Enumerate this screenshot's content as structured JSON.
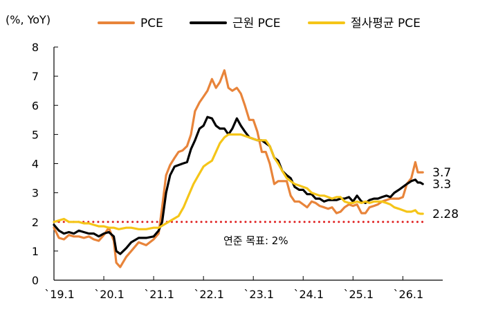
{
  "chart_data": {
    "type": "line",
    "unit_label": "(%, YoY)",
    "ylim": [
      0,
      8
    ],
    "yticks": [
      "0",
      "1",
      "2",
      "3",
      "4",
      "5",
      "6",
      "7",
      "8"
    ],
    "xticks": [
      {
        "label": "`19.1",
        "x": 2019.0
      },
      {
        "label": "`20.1",
        "x": 2020.0
      },
      {
        "label": "`21.1",
        "x": 2021.0
      },
      {
        "label": "`22.1",
        "x": 2022.0
      },
      {
        "label": "`23.1",
        "x": 2023.0
      },
      {
        "label": "`24.1",
        "x": 2024.0
      },
      {
        "label": "`25.1",
        "x": 2025.0
      },
      {
        "label": "`26.1",
        "x": 2026.0
      }
    ],
    "xlim": [
      2019.0,
      2026.8
    ],
    "legend_position": "top",
    "target": {
      "value": 2.0,
      "label": "연준 목표: 2%",
      "color": "#e02020"
    },
    "series": [
      {
        "name": "PCE",
        "color": "#e8843a",
        "end_label": "3.7",
        "points": [
          [
            2019.0,
            1.8
          ],
          [
            2019.1,
            1.45
          ],
          [
            2019.2,
            1.4
          ],
          [
            2019.3,
            1.55
          ],
          [
            2019.4,
            1.5
          ],
          [
            2019.5,
            1.5
          ],
          [
            2019.6,
            1.45
          ],
          [
            2019.7,
            1.5
          ],
          [
            2019.8,
            1.4
          ],
          [
            2019.9,
            1.35
          ],
          [
            2020.0,
            1.55
          ],
          [
            2020.1,
            1.8
          ],
          [
            2020.2,
            1.35
          ],
          [
            2020.25,
            0.6
          ],
          [
            2020.33,
            0.45
          ],
          [
            2020.45,
            0.8
          ],
          [
            2020.55,
            1.0
          ],
          [
            2020.7,
            1.3
          ],
          [
            2020.85,
            1.2
          ],
          [
            2021.0,
            1.4
          ],
          [
            2021.1,
            1.6
          ],
          [
            2021.17,
            2.5
          ],
          [
            2021.25,
            3.6
          ],
          [
            2021.33,
            3.95
          ],
          [
            2021.42,
            4.2
          ],
          [
            2021.5,
            4.4
          ],
          [
            2021.58,
            4.45
          ],
          [
            2021.67,
            4.6
          ],
          [
            2021.75,
            5.0
          ],
          [
            2021.83,
            5.8
          ],
          [
            2021.92,
            6.1
          ],
          [
            2022.0,
            6.3
          ],
          [
            2022.08,
            6.5
          ],
          [
            2022.17,
            6.9
          ],
          [
            2022.25,
            6.6
          ],
          [
            2022.33,
            6.8
          ],
          [
            2022.42,
            7.2
          ],
          [
            2022.5,
            6.6
          ],
          [
            2022.58,
            6.5
          ],
          [
            2022.67,
            6.6
          ],
          [
            2022.75,
            6.4
          ],
          [
            2022.83,
            6.0
          ],
          [
            2022.92,
            5.5
          ],
          [
            2023.0,
            5.5
          ],
          [
            2023.08,
            5.1
          ],
          [
            2023.17,
            4.4
          ],
          [
            2023.25,
            4.4
          ],
          [
            2023.33,
            4.0
          ],
          [
            2023.42,
            3.3
          ],
          [
            2023.5,
            3.4
          ],
          [
            2023.58,
            3.4
          ],
          [
            2023.67,
            3.4
          ],
          [
            2023.75,
            2.9
          ],
          [
            2023.83,
            2.7
          ],
          [
            2023.92,
            2.7
          ],
          [
            2024.0,
            2.6
          ],
          [
            2024.08,
            2.5
          ],
          [
            2024.17,
            2.7
          ],
          [
            2024.25,
            2.65
          ],
          [
            2024.33,
            2.55
          ],
          [
            2024.42,
            2.5
          ],
          [
            2024.5,
            2.45
          ],
          [
            2024.58,
            2.5
          ],
          [
            2024.67,
            2.3
          ],
          [
            2024.75,
            2.35
          ],
          [
            2024.83,
            2.5
          ],
          [
            2024.92,
            2.6
          ],
          [
            2025.0,
            2.55
          ],
          [
            2025.08,
            2.6
          ],
          [
            2025.17,
            2.3
          ],
          [
            2025.25,
            2.3
          ],
          [
            2025.33,
            2.5
          ],
          [
            2025.42,
            2.55
          ],
          [
            2025.5,
            2.6
          ],
          [
            2025.58,
            2.7
          ],
          [
            2025.67,
            2.75
          ],
          [
            2025.75,
            2.8
          ],
          [
            2025.83,
            2.8
          ],
          [
            2025.92,
            2.8
          ],
          [
            2026.0,
            2.85
          ],
          [
            2026.08,
            3.3
          ],
          [
            2026.17,
            3.5
          ],
          [
            2026.25,
            4.05
          ],
          [
            2026.3,
            3.7
          ],
          [
            2026.35,
            3.7
          ],
          [
            2026.4,
            3.7
          ]
        ]
      },
      {
        "name": "근원 PCE",
        "color": "#000000",
        "end_label": "3.3",
        "points": [
          [
            2019.0,
            1.9
          ],
          [
            2019.1,
            1.7
          ],
          [
            2019.2,
            1.6
          ],
          [
            2019.3,
            1.65
          ],
          [
            2019.4,
            1.6
          ],
          [
            2019.5,
            1.7
          ],
          [
            2019.6,
            1.65
          ],
          [
            2019.7,
            1.6
          ],
          [
            2019.8,
            1.6
          ],
          [
            2019.9,
            1.5
          ],
          [
            2020.0,
            1.6
          ],
          [
            2020.1,
            1.65
          ],
          [
            2020.2,
            1.5
          ],
          [
            2020.25,
            1.0
          ],
          [
            2020.33,
            0.9
          ],
          [
            2020.45,
            1.1
          ],
          [
            2020.55,
            1.3
          ],
          [
            2020.7,
            1.45
          ],
          [
            2020.85,
            1.45
          ],
          [
            2021.0,
            1.5
          ],
          [
            2021.1,
            1.7
          ],
          [
            2021.17,
            2.0
          ],
          [
            2021.25,
            3.0
          ],
          [
            2021.33,
            3.6
          ],
          [
            2021.42,
            3.9
          ],
          [
            2021.5,
            3.95
          ],
          [
            2021.58,
            4.0
          ],
          [
            2021.67,
            4.05
          ],
          [
            2021.75,
            4.5
          ],
          [
            2021.83,
            4.8
          ],
          [
            2021.92,
            5.2
          ],
          [
            2022.0,
            5.3
          ],
          [
            2022.08,
            5.6
          ],
          [
            2022.17,
            5.55
          ],
          [
            2022.25,
            5.3
          ],
          [
            2022.33,
            5.2
          ],
          [
            2022.42,
            5.2
          ],
          [
            2022.5,
            5.0
          ],
          [
            2022.58,
            5.2
          ],
          [
            2022.67,
            5.55
          ],
          [
            2022.75,
            5.3
          ],
          [
            2022.83,
            5.1
          ],
          [
            2022.92,
            4.9
          ],
          [
            2023.0,
            4.85
          ],
          [
            2023.08,
            4.8
          ],
          [
            2023.17,
            4.8
          ],
          [
            2023.25,
            4.7
          ],
          [
            2023.33,
            4.6
          ],
          [
            2023.42,
            4.2
          ],
          [
            2023.5,
            4.1
          ],
          [
            2023.58,
            3.75
          ],
          [
            2023.67,
            3.6
          ],
          [
            2023.75,
            3.5
          ],
          [
            2023.83,
            3.2
          ],
          [
            2023.92,
            3.1
          ],
          [
            2024.0,
            3.1
          ],
          [
            2024.08,
            2.95
          ],
          [
            2024.17,
            2.95
          ],
          [
            2024.25,
            2.8
          ],
          [
            2024.33,
            2.8
          ],
          [
            2024.42,
            2.7
          ],
          [
            2024.5,
            2.75
          ],
          [
            2024.58,
            2.75
          ],
          [
            2024.67,
            2.75
          ],
          [
            2024.75,
            2.8
          ],
          [
            2024.83,
            2.8
          ],
          [
            2024.92,
            2.85
          ],
          [
            2025.0,
            2.7
          ],
          [
            2025.08,
            2.9
          ],
          [
            2025.17,
            2.7
          ],
          [
            2025.25,
            2.65
          ],
          [
            2025.33,
            2.75
          ],
          [
            2025.42,
            2.8
          ],
          [
            2025.5,
            2.8
          ],
          [
            2025.58,
            2.85
          ],
          [
            2025.67,
            2.9
          ],
          [
            2025.75,
            2.85
          ],
          [
            2025.83,
            3.0
          ],
          [
            2025.92,
            3.1
          ],
          [
            2026.0,
            3.2
          ],
          [
            2026.08,
            3.3
          ],
          [
            2026.17,
            3.4
          ],
          [
            2026.25,
            3.45
          ],
          [
            2026.3,
            3.35
          ],
          [
            2026.35,
            3.35
          ],
          [
            2026.4,
            3.3
          ]
        ]
      },
      {
        "name": "절사평균 PCE",
        "color": "#f5c518",
        "end_label": "2.28",
        "points": [
          [
            2019.0,
            2.0
          ],
          [
            2019.1,
            2.05
          ],
          [
            2019.2,
            2.1
          ],
          [
            2019.3,
            2.0
          ],
          [
            2019.4,
            2.0
          ],
          [
            2019.5,
            2.0
          ],
          [
            2019.6,
            1.95
          ],
          [
            2019.7,
            1.95
          ],
          [
            2019.8,
            1.9
          ],
          [
            2019.9,
            1.85
          ],
          [
            2020.0,
            1.85
          ],
          [
            2020.1,
            1.8
          ],
          [
            2020.2,
            1.8
          ],
          [
            2020.3,
            1.75
          ],
          [
            2020.45,
            1.8
          ],
          [
            2020.55,
            1.8
          ],
          [
            2020.7,
            1.75
          ],
          [
            2020.85,
            1.75
          ],
          [
            2021.0,
            1.8
          ],
          [
            2021.1,
            1.8
          ],
          [
            2021.2,
            1.9
          ],
          [
            2021.3,
            2.0
          ],
          [
            2021.4,
            2.1
          ],
          [
            2021.5,
            2.2
          ],
          [
            2021.6,
            2.5
          ],
          [
            2021.7,
            2.9
          ],
          [
            2021.8,
            3.3
          ],
          [
            2021.9,
            3.6
          ],
          [
            2022.0,
            3.9
          ],
          [
            2022.08,
            4.0
          ],
          [
            2022.17,
            4.1
          ],
          [
            2022.25,
            4.4
          ],
          [
            2022.33,
            4.7
          ],
          [
            2022.42,
            4.9
          ],
          [
            2022.5,
            5.0
          ],
          [
            2022.58,
            5.0
          ],
          [
            2022.67,
            5.0
          ],
          [
            2022.75,
            5.0
          ],
          [
            2022.83,
            4.95
          ],
          [
            2022.92,
            4.9
          ],
          [
            2023.0,
            4.85
          ],
          [
            2023.08,
            4.8
          ],
          [
            2023.17,
            4.8
          ],
          [
            2023.25,
            4.8
          ],
          [
            2023.33,
            4.6
          ],
          [
            2023.42,
            4.2
          ],
          [
            2023.5,
            4.0
          ],
          [
            2023.58,
            3.75
          ],
          [
            2023.67,
            3.5
          ],
          [
            2023.75,
            3.4
          ],
          [
            2023.83,
            3.3
          ],
          [
            2023.92,
            3.25
          ],
          [
            2024.0,
            3.2
          ],
          [
            2024.08,
            3.15
          ],
          [
            2024.17,
            3.0
          ],
          [
            2024.25,
            2.95
          ],
          [
            2024.33,
            2.9
          ],
          [
            2024.42,
            2.9
          ],
          [
            2024.5,
            2.85
          ],
          [
            2024.58,
            2.8
          ],
          [
            2024.67,
            2.85
          ],
          [
            2024.75,
            2.85
          ],
          [
            2024.83,
            2.7
          ],
          [
            2024.92,
            2.65
          ],
          [
            2025.0,
            2.65
          ],
          [
            2025.08,
            2.7
          ],
          [
            2025.17,
            2.65
          ],
          [
            2025.25,
            2.7
          ],
          [
            2025.33,
            2.65
          ],
          [
            2025.42,
            2.7
          ],
          [
            2025.5,
            2.7
          ],
          [
            2025.58,
            2.7
          ],
          [
            2025.67,
            2.65
          ],
          [
            2025.75,
            2.6
          ],
          [
            2025.83,
            2.5
          ],
          [
            2025.92,
            2.45
          ],
          [
            2026.0,
            2.4
          ],
          [
            2026.08,
            2.35
          ],
          [
            2026.17,
            2.35
          ],
          [
            2026.25,
            2.4
          ],
          [
            2026.3,
            2.3
          ],
          [
            2026.35,
            2.28
          ],
          [
            2026.4,
            2.28
          ]
        ]
      }
    ]
  }
}
